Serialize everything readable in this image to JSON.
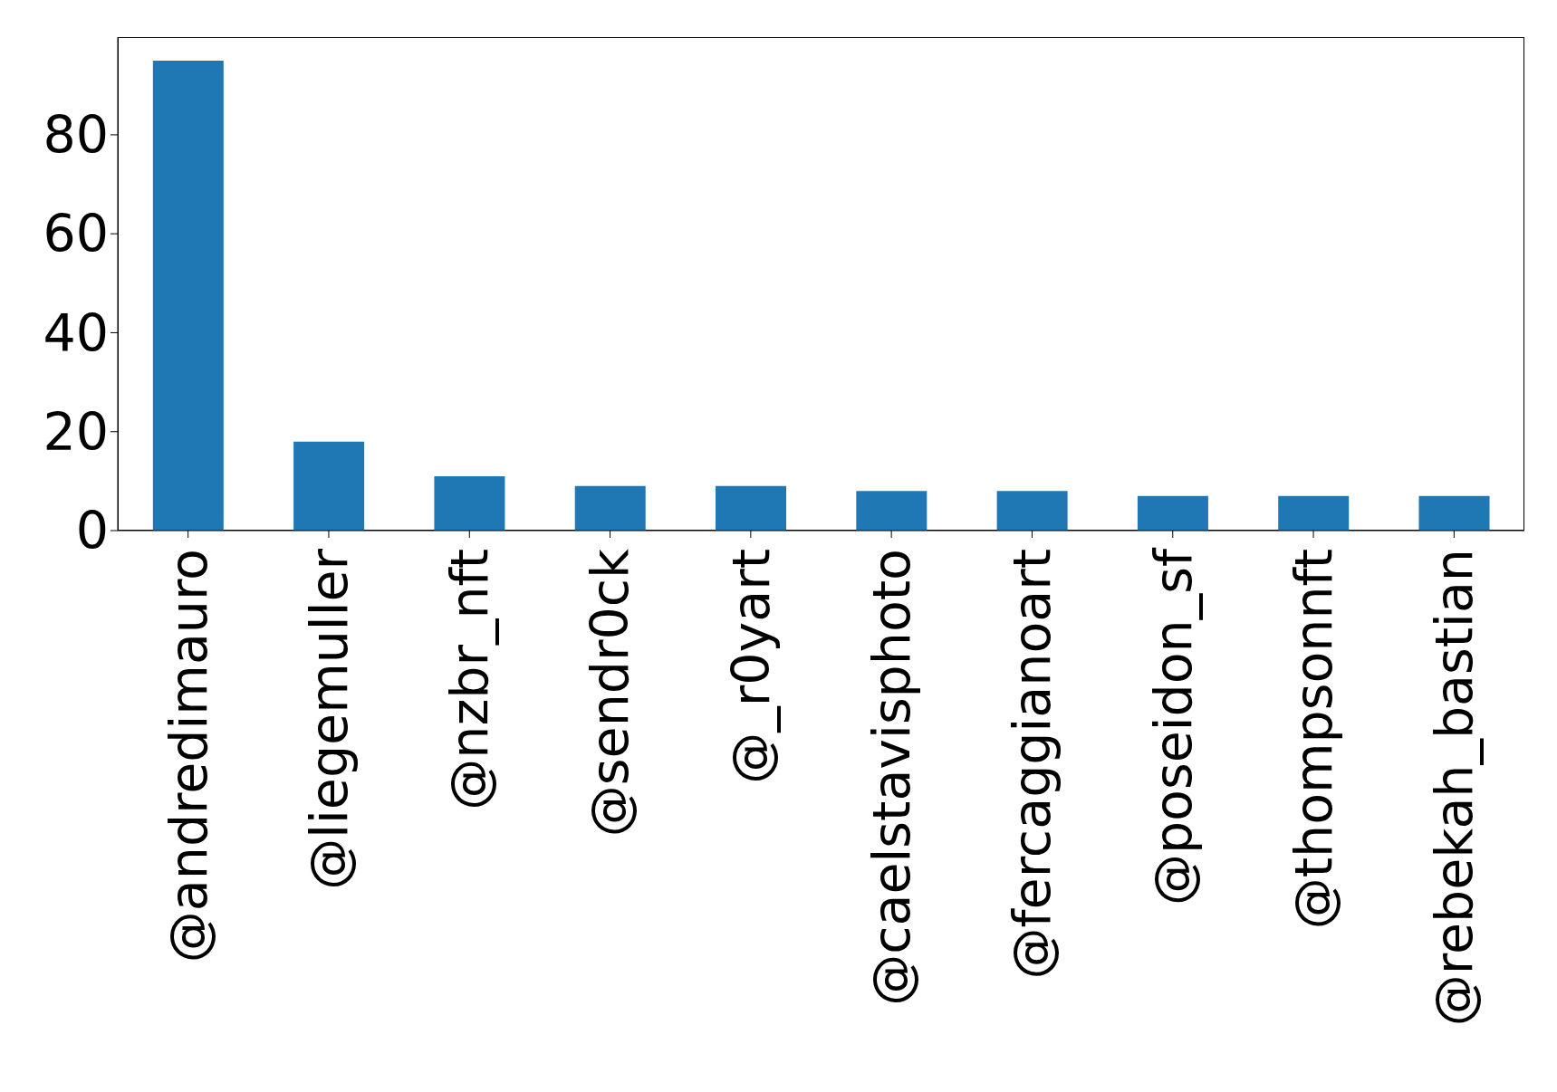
{
  "chart_data": {
    "type": "bar",
    "categories": [
      "@andredimauro",
      "@liegemuller",
      "@nzbr_nft",
      "@sendr0ck",
      "@_r0yart",
      "@caelstavisphoto",
      "@fercaggianoart",
      "@poseidon_sf",
      "@thompsonnft",
      "@rebekah_bastian"
    ],
    "values": [
      95,
      18,
      11,
      9,
      9,
      8,
      8,
      7,
      7,
      7
    ],
    "color": "#1f77b4",
    "ylim": [
      0,
      99.75
    ],
    "yticks": [
      0,
      20,
      40,
      60,
      80
    ],
    "grid": false
  }
}
